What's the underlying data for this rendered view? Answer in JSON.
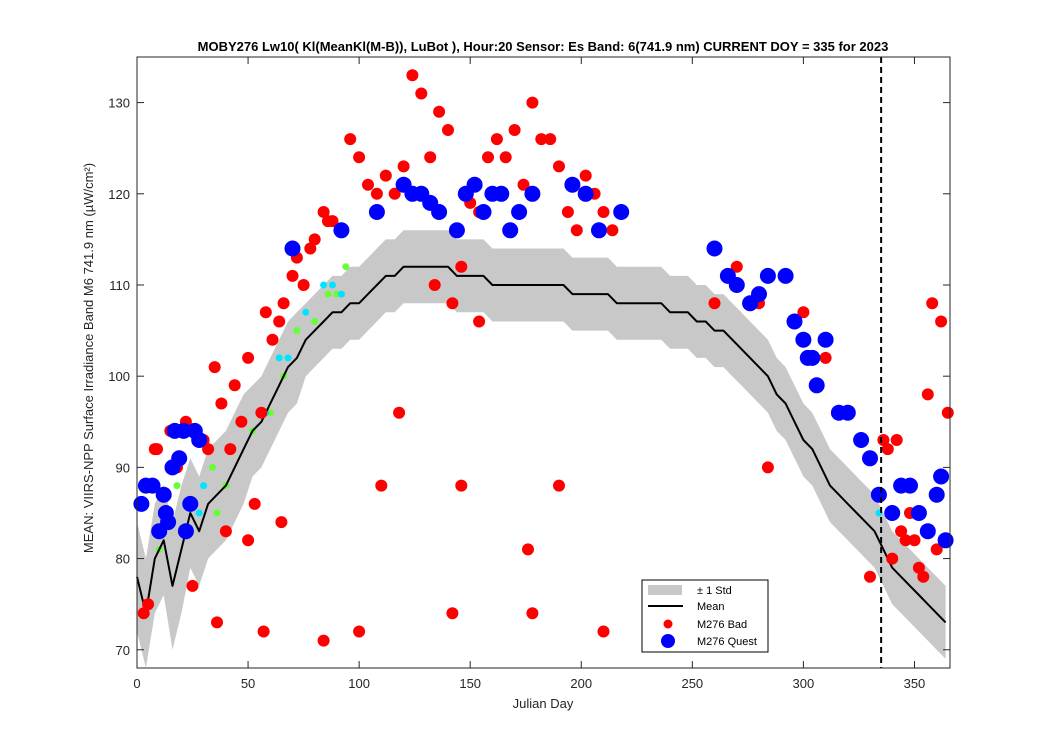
{
  "chart_data": {
    "type": "scatter",
    "title": "MOBY276   Lw10( Kl(MeanKl(M-B)), LuBot ),   Hour:20 Sensor: Es Band: 6(741.9 nm)   CURRENT DOY = 335 for 2023",
    "xlabel": "Julian Day",
    "ylabel": "MEAN: VIIRS-NPP Surface Irradiance Band M6 741.9 nm (µW/cm²)",
    "xlim": [
      0,
      366
    ],
    "ylim": [
      68,
      135
    ],
    "xticks": [
      0,
      50,
      100,
      150,
      200,
      250,
      300,
      350
    ],
    "yticks": [
      70,
      80,
      90,
      100,
      110,
      120,
      130
    ],
    "current_doy": 335,
    "legend_position": "bottom-right",
    "legend": {
      "std": "± 1 Std",
      "mean": "Mean",
      "bad": "M276 Bad",
      "quest": "M276 Quest"
    },
    "colors": {
      "band": "#c8c8c8",
      "mean": "#000000",
      "bad": "#ff0000",
      "quest": "#0000ff",
      "green": "#66ff33",
      "cyan": "#00e5ff"
    },
    "mean": {
      "x": [
        0,
        4,
        8,
        12,
        16,
        20,
        24,
        28,
        32,
        36,
        40,
        44,
        48,
        52,
        56,
        60,
        64,
        68,
        72,
        76,
        80,
        84,
        88,
        92,
        96,
        100,
        104,
        108,
        112,
        116,
        120,
        124,
        128,
        132,
        136,
        140,
        144,
        148,
        152,
        156,
        160,
        164,
        168,
        172,
        176,
        180,
        184,
        188,
        192,
        196,
        200,
        204,
        208,
        212,
        216,
        220,
        224,
        228,
        232,
        236,
        240,
        244,
        248,
        252,
        256,
        260,
        264,
        268,
        272,
        276,
        280,
        284,
        288,
        292,
        296,
        300,
        304,
        308,
        312,
        316,
        320,
        324,
        328,
        332,
        336,
        340,
        344,
        348,
        352,
        356,
        360,
        364
      ],
      "y": [
        78,
        74,
        80,
        82,
        77,
        81,
        85,
        83,
        86,
        87,
        88,
        90,
        92,
        94,
        95,
        97,
        99,
        101,
        102,
        104,
        105,
        106,
        107,
        107,
        108,
        108,
        109,
        110,
        111,
        111,
        112,
        112,
        112,
        112,
        112,
        112,
        111,
        111,
        111,
        111,
        110,
        110,
        110,
        110,
        110,
        110,
        110,
        110,
        110,
        109,
        109,
        109,
        109,
        109,
        108,
        108,
        108,
        108,
        108,
        108,
        107,
        107,
        107,
        106,
        106,
        105,
        105,
        104,
        103,
        102,
        101,
        100,
        98,
        97,
        95,
        93,
        92,
        90,
        88,
        87,
        86,
        85,
        84,
        83,
        81,
        79,
        78,
        77,
        76,
        75,
        74,
        73
      ],
      "upper": [
        84,
        80,
        86,
        88,
        84,
        88,
        91,
        89,
        92,
        93,
        94,
        96,
        98,
        99,
        100,
        102,
        104,
        106,
        107,
        108,
        109,
        110,
        111,
        111,
        112,
        112,
        113,
        114,
        115,
        115,
        116,
        116,
        116,
        116,
        116,
        116,
        115,
        115,
        115,
        115,
        114,
        114,
        114,
        114,
        114,
        114,
        114,
        114,
        114,
        113,
        113,
        113,
        113,
        113,
        112,
        112,
        112,
        112,
        112,
        112,
        111,
        111,
        111,
        110,
        110,
        109,
        109,
        108,
        107,
        106,
        105,
        104,
        102,
        101,
        99,
        97,
        96,
        94,
        92,
        91,
        90,
        89,
        88,
        87,
        85,
        83,
        82,
        81,
        80,
        79,
        78,
        77
      ],
      "lower": [
        72,
        68,
        74,
        76,
        70,
        74,
        79,
        77,
        80,
        81,
        82,
        84,
        86,
        89,
        90,
        92,
        94,
        96,
        97,
        100,
        101,
        102,
        103,
        103,
        104,
        104,
        105,
        106,
        107,
        107,
        108,
        108,
        108,
        108,
        108,
        108,
        107,
        107,
        107,
        107,
        106,
        106,
        106,
        106,
        106,
        106,
        106,
        106,
        106,
        105,
        105,
        105,
        105,
        105,
        104,
        104,
        104,
        104,
        104,
        104,
        103,
        103,
        103,
        102,
        102,
        101,
        101,
        100,
        99,
        98,
        97,
        96,
        94,
        93,
        91,
        89,
        88,
        86,
        84,
        83,
        82,
        81,
        80,
        79,
        77,
        75,
        74,
        73,
        72,
        71,
        70,
        69
      ]
    },
    "bad": {
      "x": [
        3,
        5,
        8,
        9,
        15,
        18,
        22,
        25,
        30,
        32,
        35,
        36,
        38,
        40,
        42,
        44,
        47,
        50,
        53,
        56,
        58,
        61,
        64,
        66,
        70,
        72,
        75,
        78,
        80,
        84,
        86,
        88,
        92,
        96,
        100,
        104,
        108,
        112,
        116,
        120,
        124,
        128,
        132,
        136,
        140,
        142,
        146,
        150,
        154,
        158,
        162,
        166,
        170,
        174,
        178,
        182,
        186,
        190,
        194,
        198,
        202,
        206,
        210,
        214,
        218,
        50,
        57,
        65,
        84,
        100,
        110,
        118,
        134,
        142,
        146,
        154,
        176,
        178,
        190,
        210,
        260,
        270,
        280,
        284,
        300,
        310,
        330,
        338,
        342,
        346,
        350,
        354,
        358,
        362,
        365,
        344,
        352,
        356,
        360,
        336,
        340,
        348
      ],
      "y": [
        74,
        75,
        92,
        92,
        94,
        90,
        95,
        77,
        93,
        92,
        101,
        73,
        97,
        83,
        92,
        99,
        95,
        102,
        86,
        96,
        107,
        104,
        106,
        108,
        111,
        113,
        110,
        114,
        115,
        118,
        117,
        117,
        116,
        126,
        124,
        121,
        120,
        122,
        120,
        123,
        133,
        131,
        124,
        129,
        127,
        108,
        112,
        119,
        118,
        124,
        126,
        124,
        127,
        121,
        130,
        126,
        126,
        123,
        118,
        116,
        122,
        120,
        118,
        116,
        118,
        82,
        72,
        84,
        71,
        72,
        88,
        96,
        110,
        74,
        88,
        106,
        81,
        74,
        88,
        72,
        108,
        112,
        108,
        90,
        107,
        102,
        78,
        92,
        93,
        82,
        82,
        78,
        108,
        106,
        96,
        83,
        79,
        98,
        81,
        93,
        80,
        85
      ],
      "s": 6
    },
    "quest": {
      "x": [
        2,
        4,
        7,
        10,
        13,
        16,
        19,
        21,
        24,
        26,
        17,
        22,
        28,
        70,
        92,
        108,
        120,
        124,
        128,
        132,
        136,
        144,
        148,
        152,
        156,
        160,
        164,
        168,
        172,
        178,
        196,
        202,
        208,
        218,
        260,
        266,
        270,
        276,
        280,
        284,
        292,
        296,
        300,
        302,
        304,
        306,
        310,
        316,
        320,
        326,
        330,
        334,
        340,
        344,
        348,
        352,
        356,
        360,
        362,
        364,
        14,
        12
      ],
      "y": [
        86,
        88,
        88,
        83,
        85,
        90,
        91,
        94,
        86,
        94,
        94,
        83,
        93,
        114,
        116,
        118,
        121,
        120,
        120,
        119,
        118,
        116,
        120,
        121,
        118,
        120,
        120,
        116,
        118,
        120,
        121,
        120,
        116,
        118,
        114,
        111,
        110,
        108,
        109,
        111,
        111,
        106,
        104,
        102,
        102,
        99,
        104,
        96,
        96,
        93,
        91,
        87,
        85,
        88,
        88,
        85,
        83,
        87,
        89,
        82,
        84,
        87
      ],
      "s": 8
    },
    "green": {
      "x": [
        10,
        18,
        24,
        34,
        36,
        40,
        52,
        60,
        66,
        72,
        80,
        86,
        90,
        94
      ],
      "y": [
        81,
        88,
        86,
        90,
        85,
        88,
        94,
        96,
        100,
        105,
        106,
        109,
        109,
        112
      ],
      "s": 3.5
    },
    "cyan": {
      "x": [
        12,
        22,
        28,
        30,
        42,
        48,
        58,
        64,
        68,
        76,
        84,
        88,
        92,
        334
      ],
      "y": [
        84,
        86,
        85,
        88,
        92,
        95,
        96,
        102,
        102,
        107,
        110,
        110,
        109,
        85
      ],
      "s": 3.5
    }
  }
}
